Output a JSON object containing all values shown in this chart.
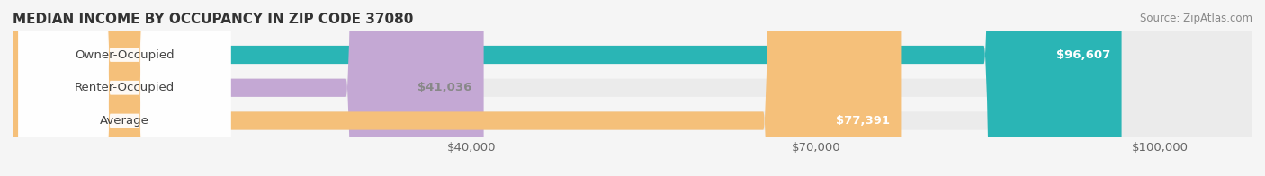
{
  "title": "MEDIAN INCOME BY OCCUPANCY IN ZIP CODE 37080",
  "source": "Source: ZipAtlas.com",
  "categories": [
    "Owner-Occupied",
    "Renter-Occupied",
    "Average"
  ],
  "values": [
    96607,
    41036,
    77391
  ],
  "bar_colors": [
    "#2ab5b5",
    "#c4a8d4",
    "#f5c07a"
  ],
  "label_colors": [
    "#ffffff",
    "#888888",
    "#ffffff"
  ],
  "value_labels": [
    "$96,607",
    "$41,036",
    "$77,391"
  ],
  "x_ticks": [
    40000,
    70000,
    100000
  ],
  "x_tick_labels": [
    "$40,000",
    "$70,000",
    "$100,000"
  ],
  "x_min": 0,
  "x_max": 108000,
  "background_color": "#f5f5f5",
  "bar_bg_color": "#ebebeb",
  "bar_height": 0.55,
  "title_fontsize": 11,
  "label_fontsize": 9.5,
  "value_fontsize": 9.5,
  "source_fontsize": 8.5
}
